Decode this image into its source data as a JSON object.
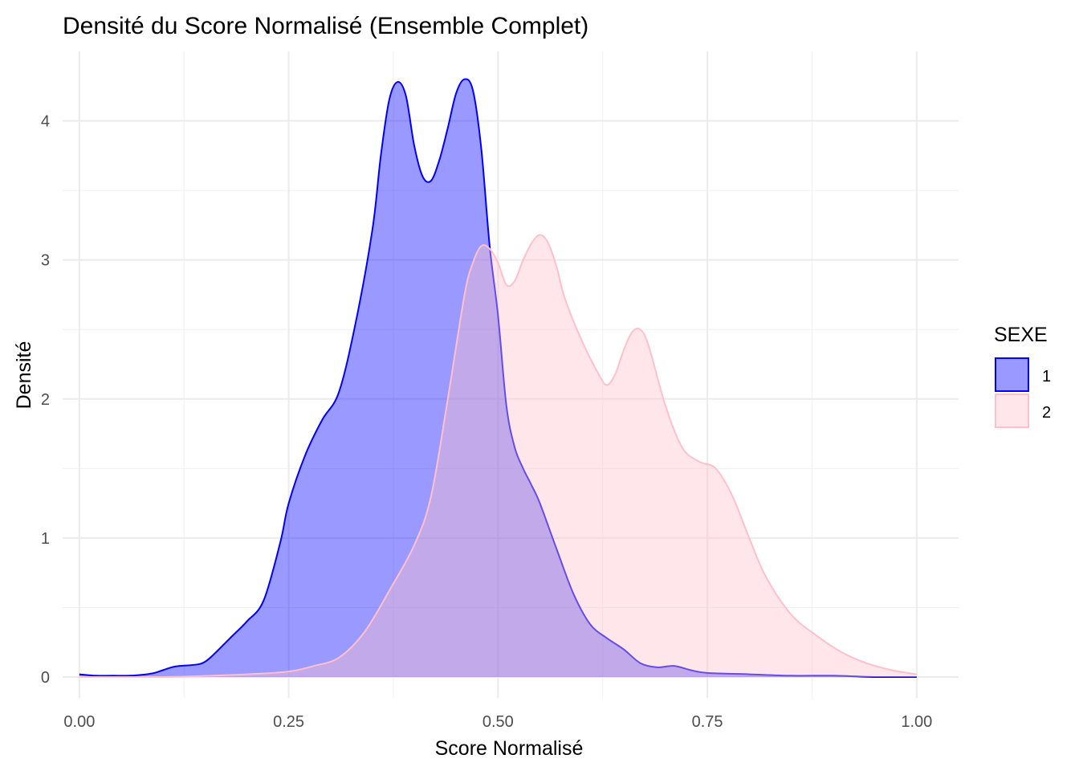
{
  "chart_data": {
    "type": "area",
    "title": "Densité du Score Normalisé (Ensemble Complet)",
    "xlabel": "Score Normalisé",
    "ylabel": "Densité",
    "xlim": [
      -0.02,
      1.05
    ],
    "ylim": [
      -0.15,
      4.5
    ],
    "grid": true,
    "x_ticks": [
      0.0,
      0.25,
      0.5,
      0.75,
      1.0
    ],
    "x_tick_labels": [
      "0.00",
      "0.25",
      "0.50",
      "0.75",
      "1.00"
    ],
    "y_ticks": [
      0,
      1,
      2,
      3,
      4
    ],
    "y_tick_labels": [
      "0",
      "1",
      "2",
      "3",
      "4"
    ],
    "legend": {
      "title": "SEXE",
      "position": "right",
      "entries": [
        "1",
        "2"
      ]
    },
    "series": [
      {
        "name": "1",
        "stroke": "#0000ff",
        "fill": "#0000ff",
        "fill_opacity": 0.4,
        "x": [
          0.0,
          0.02,
          0.04,
          0.06,
          0.08,
          0.09,
          0.1,
          0.11,
          0.12,
          0.14,
          0.15,
          0.16,
          0.18,
          0.2,
          0.22,
          0.24,
          0.25,
          0.27,
          0.29,
          0.31,
          0.33,
          0.35,
          0.36,
          0.37,
          0.38,
          0.39,
          0.4,
          0.41,
          0.42,
          0.43,
          0.44,
          0.45,
          0.46,
          0.47,
          0.48,
          0.49,
          0.5,
          0.51,
          0.52,
          0.53,
          0.54,
          0.55,
          0.57,
          0.59,
          0.61,
          0.63,
          0.65,
          0.67,
          0.69,
          0.71,
          0.73,
          0.75,
          0.8,
          0.85,
          0.9,
          0.95,
          1.0
        ],
        "y": [
          0.02,
          0.01,
          0.01,
          0.01,
          0.02,
          0.03,
          0.05,
          0.07,
          0.08,
          0.09,
          0.11,
          0.16,
          0.28,
          0.4,
          0.55,
          0.97,
          1.25,
          1.6,
          1.85,
          2.05,
          2.55,
          3.22,
          3.75,
          4.15,
          4.28,
          4.18,
          3.82,
          3.6,
          3.57,
          3.72,
          3.95,
          4.2,
          4.3,
          4.22,
          3.8,
          3.1,
          2.6,
          1.95,
          1.65,
          1.5,
          1.38,
          1.25,
          0.92,
          0.6,
          0.38,
          0.28,
          0.2,
          0.1,
          0.07,
          0.08,
          0.05,
          0.03,
          0.02,
          0.01,
          0.01,
          0.0,
          0.0
        ]
      },
      {
        "name": "2",
        "stroke": "#ffc0cb",
        "fill": "#ffc0cb",
        "fill_opacity": 0.4,
        "x": [
          0.0,
          0.1,
          0.2,
          0.25,
          0.28,
          0.31,
          0.34,
          0.37,
          0.4,
          0.42,
          0.44,
          0.46,
          0.47,
          0.48,
          0.49,
          0.5,
          0.51,
          0.52,
          0.53,
          0.54,
          0.55,
          0.56,
          0.57,
          0.58,
          0.6,
          0.62,
          0.63,
          0.64,
          0.65,
          0.66,
          0.67,
          0.68,
          0.7,
          0.72,
          0.74,
          0.76,
          0.78,
          0.8,
          0.82,
          0.85,
          0.88,
          0.91,
          0.94,
          0.97,
          1.0
        ],
        "y": [
          0.0,
          0.0,
          0.02,
          0.04,
          0.08,
          0.14,
          0.32,
          0.62,
          0.95,
          1.3,
          2.0,
          2.75,
          2.98,
          3.1,
          3.08,
          2.98,
          2.82,
          2.85,
          3.0,
          3.12,
          3.18,
          3.12,
          2.95,
          2.72,
          2.42,
          2.18,
          2.1,
          2.18,
          2.35,
          2.48,
          2.5,
          2.38,
          1.95,
          1.65,
          1.55,
          1.5,
          1.3,
          1.0,
          0.72,
          0.45,
          0.3,
          0.18,
          0.1,
          0.05,
          0.02
        ]
      }
    ]
  }
}
